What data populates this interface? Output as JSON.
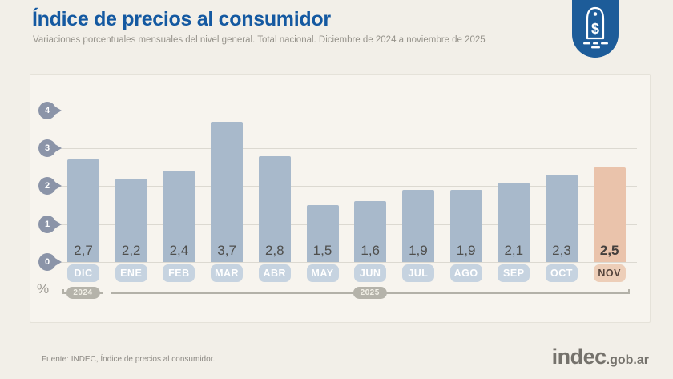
{
  "header": {
    "title": "Índice de precios al consumidor",
    "subtitle": "Variaciones porcentuales mensuales del nivel general. Total nacional. Diciembre de 2024 a noviembre de 2025"
  },
  "chart_data": {
    "type": "bar",
    "title": "Índice de precios al consumidor",
    "categories": [
      "DIC",
      "ENE",
      "FEB",
      "MAR",
      "ABR",
      "MAY",
      "JUN",
      "JUL",
      "AGO",
      "SEP",
      "OCT",
      "NOV"
    ],
    "values": [
      2.7,
      2.2,
      2.4,
      3.7,
      2.8,
      1.5,
      1.6,
      1.9,
      1.9,
      2.1,
      2.3,
      2.5
    ],
    "value_labels": [
      "2,7",
      "2,2",
      "2,4",
      "3,7",
      "2,8",
      "1,5",
      "1,6",
      "1,9",
      "1,9",
      "2,1",
      "2,3",
      "2,5"
    ],
    "highlight_index": 11,
    "unit_label": "%",
    "y_ticks": [
      4,
      3,
      2,
      1,
      0
    ],
    "ylim": [
      0,
      4
    ],
    "grid": true,
    "year_groups": [
      {
        "label": "2024",
        "from": 0,
        "to": 0
      },
      {
        "label": "2025",
        "from": 1,
        "to": 11
      }
    ],
    "colors": {
      "bar": "#a8b9cb",
      "bar_highlight": "#eac3ab",
      "month_pill": "#c6d3e0",
      "month_pill_highlight": "#edceb8",
      "month_text": "#ffffff",
      "month_text_highlight": "#54443c",
      "value_text": "#4f4f4d",
      "value_text_highlight": "#443f3d",
      "pin": "#8b94a8",
      "gridline": "#dcd9d1",
      "accent_blue": "#1d5c99"
    }
  },
  "footer": {
    "source": "Fuente: INDEC, Índice de precios al consumidor.",
    "logo_main": "indec",
    "logo_suffix": ".gob.ar"
  }
}
